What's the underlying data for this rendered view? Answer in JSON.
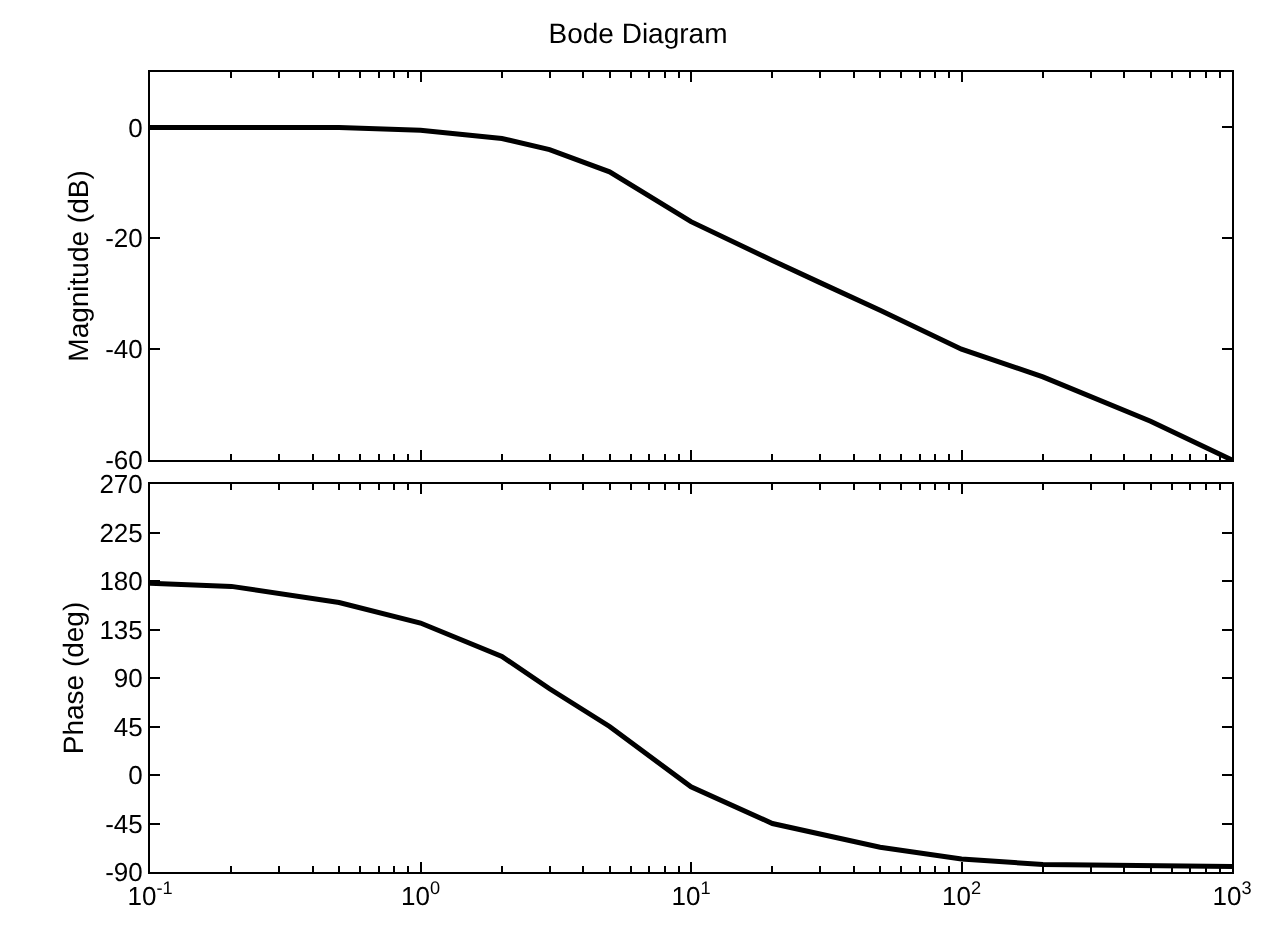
{
  "chart_data": [
    {
      "type": "line",
      "title": "Bode Diagram",
      "ylabel": "Magnitude (dB)",
      "log": "x",
      "marker": "none",
      "line_style": "solid",
      "tick_labels": "y",
      "x": [
        0.1,
        0.2,
        0.5,
        1,
        2,
        3,
        5,
        10,
        20,
        30,
        50,
        100,
        200,
        500,
        1000
      ],
      "series": [
        {
          "color": "#000000",
          "values": [
            0,
            0,
            0,
            -0.5,
            -2,
            -4,
            -8,
            -17,
            -24,
            -28,
            -33,
            -40,
            -45,
            -53,
            -60
          ]
        }
      ],
      "xlim": [
        0.1,
        1000
      ],
      "ylim": [
        -60,
        10
      ],
      "yticks": [
        -60,
        -40,
        -20,
        0
      ]
    },
    {
      "type": "line",
      "ylabel": "Phase (deg)",
      "log": "x",
      "marker": "none",
      "line_style": "solid",
      "x": [
        0.1,
        0.2,
        0.5,
        1,
        2,
        3,
        5,
        10,
        20,
        50,
        100,
        200,
        1000
      ],
      "series": [
        {
          "color": "#000000",
          "values": [
            178,
            175,
            160,
            141,
            110,
            80,
            45,
            -11,
            -45,
            -67,
            -78,
            -83,
            -85
          ]
        }
      ],
      "xlim": [
        0.1,
        1000
      ],
      "xticks": [
        {
          "value": 0.1,
          "label": "10$^{-1}$"
        },
        {
          "value": 1,
          "label": "10$^{0}$"
        },
        {
          "value": 10,
          "label": "10$^{1}$"
        },
        {
          "value": 100,
          "label": "10$^{2}$"
        },
        {
          "value": 1000,
          "label": "10$^{3}$"
        }
      ],
      "ylim": [
        -90,
        270
      ],
      "yticks": [
        -90,
        -45,
        0,
        45,
        90,
        135,
        180,
        225,
        270
      ]
    }
  ]
}
